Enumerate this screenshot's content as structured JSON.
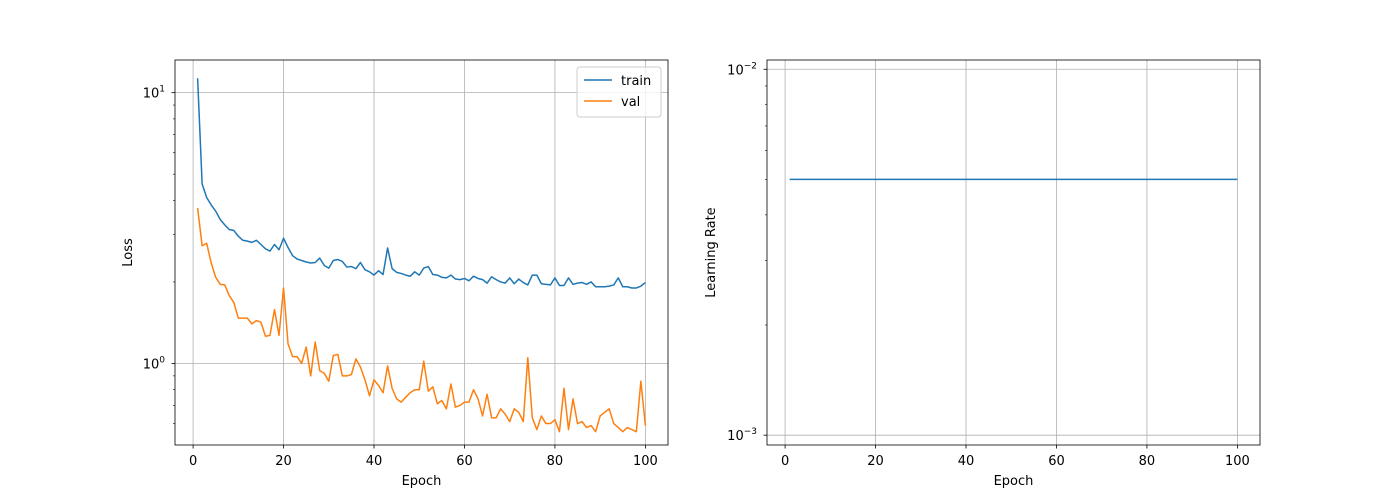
{
  "chart_data": [
    {
      "type": "line",
      "title": "",
      "xlabel": "Epoch",
      "ylabel": "Loss",
      "yscale": "log",
      "xlim": [
        -4.0,
        105.0
      ],
      "ylim": [
        0.5,
        13.2
      ],
      "xticks": [
        0,
        20,
        40,
        60,
        80,
        100
      ],
      "yticks": [
        {
          "value": 1,
          "base": "10",
          "exp": "0"
        },
        {
          "value": 10,
          "base": "10",
          "exp": "1"
        }
      ],
      "grid": true,
      "legend_position": "top-right",
      "x": [
        1,
        2,
        3,
        4,
        5,
        6,
        7,
        8,
        9,
        10,
        11,
        12,
        13,
        14,
        15,
        16,
        17,
        18,
        19,
        20,
        21,
        22,
        23,
        24,
        25,
        26,
        27,
        28,
        29,
        30,
        31,
        32,
        33,
        34,
        35,
        36,
        37,
        38,
        39,
        40,
        41,
        42,
        43,
        44,
        45,
        46,
        47,
        48,
        49,
        50,
        51,
        52,
        53,
        54,
        55,
        56,
        57,
        58,
        59,
        60,
        61,
        62,
        63,
        64,
        65,
        66,
        67,
        68,
        69,
        70,
        71,
        72,
        73,
        74,
        75,
        76,
        77,
        78,
        79,
        80,
        81,
        82,
        83,
        84,
        85,
        86,
        87,
        88,
        89,
        90,
        91,
        92,
        93,
        94,
        95,
        96,
        97,
        98,
        99,
        100
      ],
      "series": [
        {
          "name": "train",
          "color": "#1f77b4",
          "values": [
            11.3,
            4.6,
            4.1,
            3.85,
            3.65,
            3.4,
            3.25,
            3.12,
            3.1,
            2.95,
            2.85,
            2.83,
            2.8,
            2.85,
            2.75,
            2.65,
            2.6,
            2.75,
            2.63,
            2.9,
            2.68,
            2.5,
            2.43,
            2.4,
            2.37,
            2.35,
            2.36,
            2.45,
            2.3,
            2.25,
            2.4,
            2.42,
            2.38,
            2.27,
            2.28,
            2.24,
            2.36,
            2.22,
            2.18,
            2.12,
            2.2,
            2.13,
            2.67,
            2.24,
            2.17,
            2.15,
            2.12,
            2.1,
            2.18,
            2.12,
            2.25,
            2.28,
            2.13,
            2.12,
            2.08,
            2.07,
            2.12,
            2.05,
            2.04,
            2.06,
            2.02,
            2.1,
            2.06,
            2.04,
            1.98,
            2.09,
            2.04,
            2.0,
            1.98,
            2.07,
            1.97,
            2.05,
            1.99,
            1.95,
            2.12,
            2.12,
            1.97,
            1.96,
            1.95,
            2.07,
            1.94,
            1.94,
            2.07,
            1.96,
            1.98,
            1.99,
            1.96,
            2.0,
            1.92,
            1.92,
            1.92,
            1.93,
            1.95,
            2.07,
            1.92,
            1.92,
            1.9,
            1.9,
            1.93,
            1.99
          ]
        },
        {
          "name": "val",
          "color": "#ff7f0e",
          "values": [
            3.75,
            2.72,
            2.78,
            2.35,
            2.08,
            1.96,
            1.95,
            1.78,
            1.68,
            1.47,
            1.47,
            1.47,
            1.4,
            1.44,
            1.42,
            1.26,
            1.27,
            1.58,
            1.27,
            1.9,
            1.18,
            1.06,
            1.06,
            1.0,
            1.15,
            0.9,
            1.2,
            0.94,
            0.92,
            0.86,
            1.07,
            1.08,
            0.9,
            0.9,
            0.91,
            1.04,
            0.97,
            0.87,
            0.76,
            0.87,
            0.83,
            0.78,
            0.98,
            0.81,
            0.74,
            0.72,
            0.75,
            0.78,
            0.8,
            0.8,
            1.02,
            0.79,
            0.82,
            0.71,
            0.73,
            0.68,
            0.84,
            0.69,
            0.7,
            0.72,
            0.72,
            0.8,
            0.74,
            0.64,
            0.77,
            0.63,
            0.63,
            0.68,
            0.65,
            0.61,
            0.68,
            0.66,
            0.61,
            1.05,
            0.63,
            0.57,
            0.64,
            0.6,
            0.6,
            0.62,
            0.56,
            0.81,
            0.57,
            0.74,
            0.6,
            0.61,
            0.58,
            0.59,
            0.56,
            0.64,
            0.66,
            0.68,
            0.6,
            0.58,
            0.56,
            0.58,
            0.57,
            0.56,
            0.86,
            0.59
          ]
        }
      ]
    },
    {
      "type": "line",
      "title": "",
      "xlabel": "Epoch",
      "ylabel": "Learning Rate",
      "yscale": "log",
      "xlim": [
        -4.0,
        105.0
      ],
      "ylim": [
        0.00094,
        0.0106
      ],
      "xticks": [
        0,
        20,
        40,
        60,
        80,
        100
      ],
      "yticks": [
        {
          "value": 0.001,
          "base": "10",
          "exp": "−3"
        },
        {
          "value": 0.01,
          "base": "10",
          "exp": "−2"
        }
      ],
      "grid": true,
      "x": [
        1,
        100
      ],
      "series": [
        {
          "color": "#1f77b4",
          "values": [
            0.005,
            0.005
          ]
        }
      ]
    }
  ]
}
